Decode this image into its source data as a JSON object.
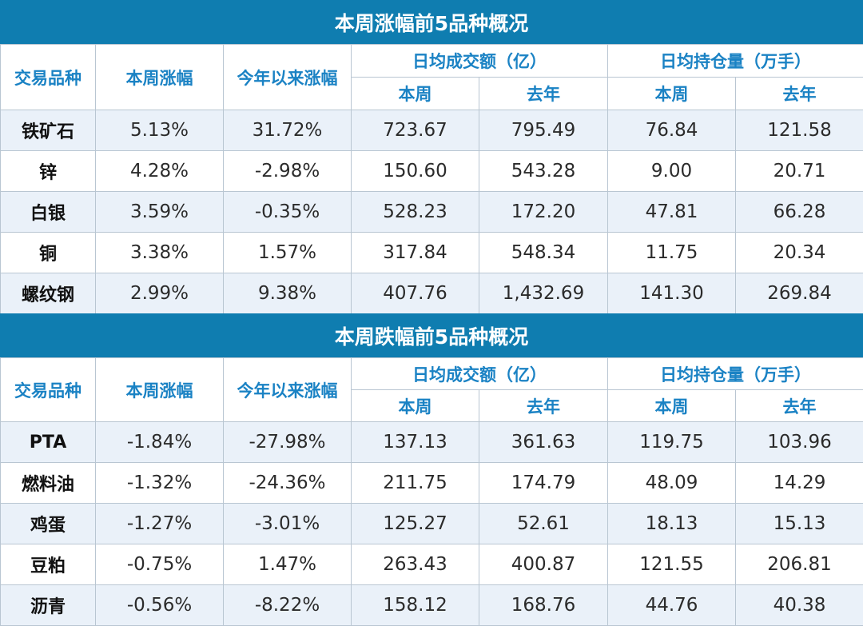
{
  "sections": [
    {
      "title": "本周涨幅前5品种概况",
      "headers": {
        "variety": "交易品种",
        "week_change": "本周涨幅",
        "ytd_change": "今年以来涨幅",
        "turnover": "日均成交额（亿）",
        "open_interest": "日均持仓量（万手）",
        "this_week": "本周",
        "last_year": "去年"
      },
      "rows": [
        {
          "name": "铁矿石",
          "week": "5.13%",
          "ytd": "31.72%",
          "turnover_week": "723.67",
          "turnover_last_year": "795.49",
          "oi_week": "76.84",
          "oi_last_year": "121.58"
        },
        {
          "name": "锌",
          "week": "4.28%",
          "ytd": "-2.98%",
          "turnover_week": "150.60",
          "turnover_last_year": "543.28",
          "oi_week": "9.00",
          "oi_last_year": "20.71"
        },
        {
          "name": "白银",
          "week": "3.59%",
          "ytd": "-0.35%",
          "turnover_week": "528.23",
          "turnover_last_year": "172.20",
          "oi_week": "47.81",
          "oi_last_year": "66.28"
        },
        {
          "name": "铜",
          "week": "3.38%",
          "ytd": "1.57%",
          "turnover_week": "317.84",
          "turnover_last_year": "548.34",
          "oi_week": "11.75",
          "oi_last_year": "20.34"
        },
        {
          "name": "螺纹钢",
          "week": "2.99%",
          "ytd": "9.38%",
          "turnover_week": "407.76",
          "turnover_last_year": "1,432.69",
          "oi_week": "141.30",
          "oi_last_year": "269.84"
        }
      ]
    },
    {
      "title": "本周跌幅前5品种概况",
      "headers": {
        "variety": "交易品种",
        "week_change": "本周涨幅",
        "ytd_change": "今年以来涨幅",
        "turnover": "日均成交额（亿）",
        "open_interest": "日均持仓量（万手）",
        "this_week": "本周",
        "last_year": "去年"
      },
      "rows": [
        {
          "name": "PTA",
          "week": "-1.84%",
          "ytd": "-27.98%",
          "turnover_week": "137.13",
          "turnover_last_year": "361.63",
          "oi_week": "119.75",
          "oi_last_year": "103.96"
        },
        {
          "name": "燃料油",
          "week": "-1.32%",
          "ytd": "-24.36%",
          "turnover_week": "211.75",
          "turnover_last_year": "174.79",
          "oi_week": "48.09",
          "oi_last_year": "14.29"
        },
        {
          "name": "鸡蛋",
          "week": "-1.27%",
          "ytd": "-3.01%",
          "turnover_week": "125.27",
          "turnover_last_year": "52.61",
          "oi_week": "18.13",
          "oi_last_year": "15.13"
        },
        {
          "name": "豆粕",
          "week": "-0.75%",
          "ytd": "1.47%",
          "turnover_week": "263.43",
          "turnover_last_year": "400.87",
          "oi_week": "121.55",
          "oi_last_year": "206.81"
        },
        {
          "name": "沥青",
          "week": "-0.56%",
          "ytd": "-8.22%",
          "turnover_week": "158.12",
          "turnover_last_year": "168.76",
          "oi_week": "44.76",
          "oi_last_year": "40.38"
        }
      ]
    }
  ]
}
